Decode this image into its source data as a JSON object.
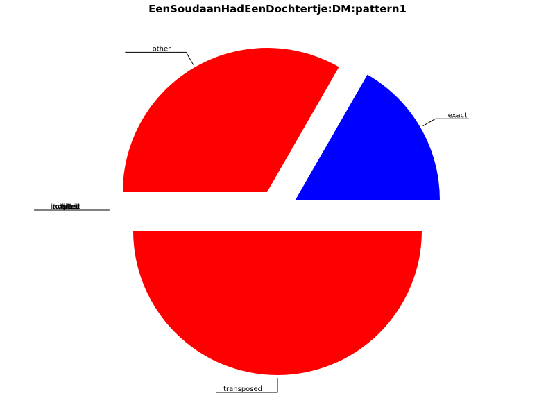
{
  "chart_data": {
    "type": "pie",
    "title": "EenSoudaanHadEenDochtertje:DM:pattern1",
    "slices": [
      {
        "label": "exact",
        "value": 16.7,
        "color": "#0000ff"
      },
      {
        "label": "other",
        "value": 33.3,
        "color": "#ff0000"
      },
      {
        "label": "",
        "value": 0,
        "color": "#ff0000",
        "overlapping_labels": [
          "tolerant",
          "trill",
          "kohlerd",
          "fulled",
          "inverted",
          "jitter"
        ]
      },
      {
        "label": "transposed",
        "value": 50.0,
        "color": "#ff0000"
      }
    ],
    "legend": "none"
  }
}
